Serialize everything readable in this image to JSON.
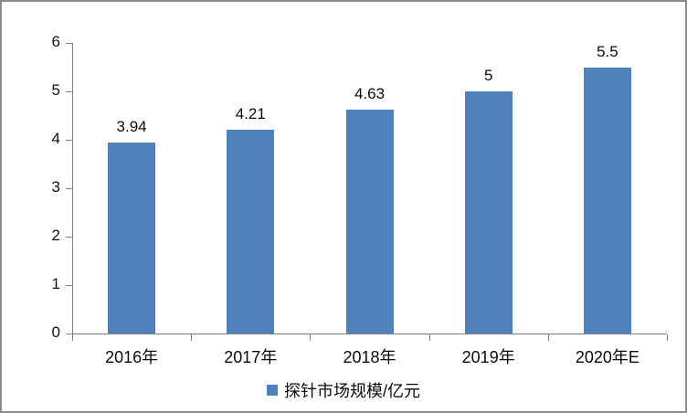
{
  "chart_data": {
    "type": "bar",
    "categories": [
      "2016年",
      "2017年",
      "2018年",
      "2019年",
      "2020年E"
    ],
    "values": [
      3.94,
      4.21,
      4.63,
      5,
      5.5
    ],
    "value_labels": [
      "3.94",
      "4.21",
      "4.63",
      "5",
      "5.5"
    ],
    "title": "",
    "xlabel": "",
    "ylabel": "",
    "ylim": [
      0,
      6
    ],
    "yticks": [
      0,
      1,
      2,
      3,
      4,
      5,
      6
    ],
    "grid": false,
    "legend_position": "bottom",
    "legend": {
      "label": "探针市场规模/亿元"
    },
    "colors": {
      "bar": "#4F81BD",
      "axis": "#808080",
      "text": "#0b0b0b",
      "frame_border": "#8a8a8a",
      "background": "#ffffff"
    }
  }
}
